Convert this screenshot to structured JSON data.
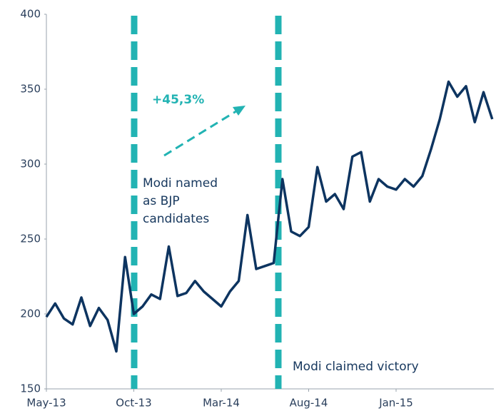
{
  "chart_data": {
    "type": "line",
    "categories": [
      "May-13",
      null,
      null,
      null,
      null,
      null,
      null,
      null,
      null,
      null,
      "Oct-13",
      null,
      null,
      null,
      null,
      null,
      null,
      null,
      null,
      null,
      "Mar-14",
      null,
      null,
      null,
      null,
      null,
      null,
      null,
      null,
      null,
      "Aug-14",
      null,
      null,
      null,
      null,
      null,
      null,
      null,
      null,
      null,
      "Jan-15",
      null,
      null,
      null,
      null,
      null,
      null,
      null,
      null,
      null,
      null,
      null
    ],
    "series": [
      {
        "color": "#0d3460",
        "values": [
          198,
          207,
          197,
          193,
          211,
          192,
          204,
          196,
          175,
          238,
          200,
          205,
          213,
          210,
          245,
          212,
          214,
          222,
          215,
          210,
          205,
          215,
          222,
          266,
          230,
          232,
          234,
          290,
          255,
          252,
          258,
          298,
          275,
          280,
          270,
          305,
          308,
          275,
          290,
          285,
          283,
          290,
          285,
          292,
          310,
          330,
          355,
          345,
          352,
          328,
          348,
          330
        ]
      }
    ],
    "ylim": [
      150,
      400
    ],
    "yticks": [
      150,
      200,
      250,
      300,
      350,
      400
    ],
    "grid": false,
    "annotations": [
      {
        "text": "+45,3%"
      },
      {
        "text": [
          "Modi named",
          "as BJP",
          "candidates"
        ]
      },
      {
        "text": "Modi claimed victory"
      }
    ]
  }
}
